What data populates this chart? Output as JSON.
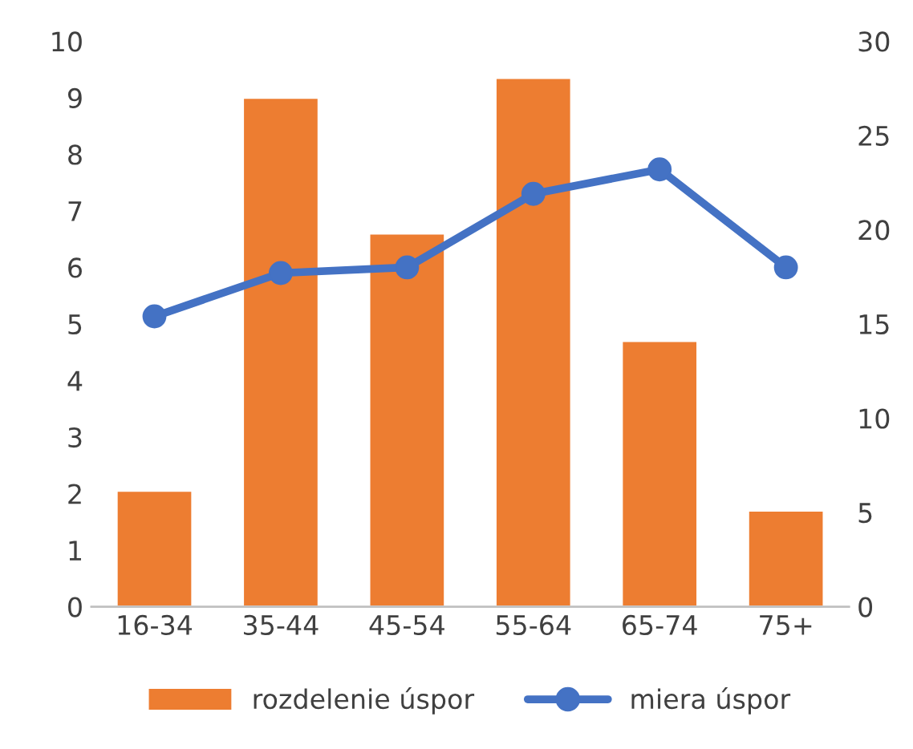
{
  "chart_data": {
    "type": "bar",
    "categories": [
      "16-34",
      "35-44",
      "45-54",
      "55-64",
      "65-74",
      "75+"
    ],
    "series": [
      {
        "name": "rozdelenie úspor",
        "color": "#ed7d31",
        "values": [
          2.05,
          9.0,
          6.6,
          9.35,
          4.7,
          1.7
        ]
      },
      {
        "name": "miera úspor",
        "type": "line",
        "axis": "y2",
        "color": "#4472c4",
        "marker": "circle",
        "values": [
          15.4,
          17.7,
          18.0,
          21.9,
          23.2,
          18.0
        ]
      }
    ],
    "ylim": [
      0,
      10
    ],
    "yticks": [
      0,
      1,
      2,
      3,
      4,
      5,
      6,
      7,
      8,
      9,
      10
    ],
    "y2lim": [
      0,
      30
    ],
    "y2ticks": [
      0,
      5,
      10,
      15,
      20,
      25,
      30
    ],
    "grid": false,
    "legend": "bottom"
  }
}
